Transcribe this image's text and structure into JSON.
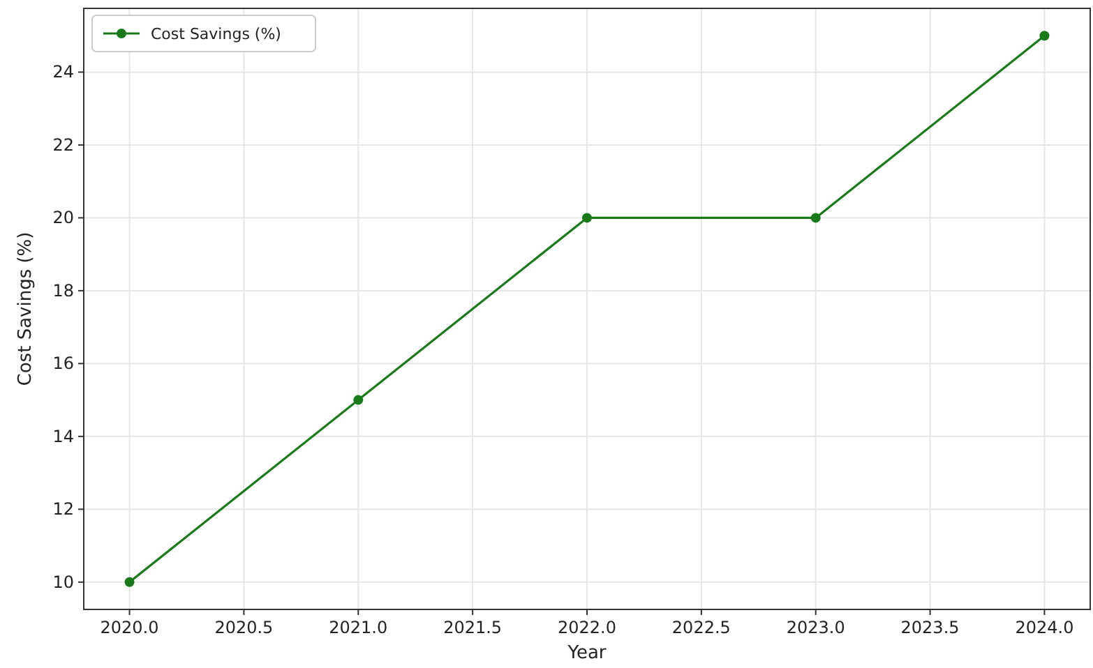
{
  "chart_data": {
    "type": "line",
    "xlabel": "Year",
    "ylabel": "Cost Savings (%)",
    "x": [
      2020,
      2021,
      2022,
      2023,
      2024
    ],
    "series": [
      {
        "name": "Cost Savings (%)",
        "color": "#1a7a1a",
        "values": [
          10,
          15,
          20,
          20,
          25
        ]
      }
    ],
    "xlim": [
      2019.8,
      2024.2
    ],
    "ylim": [
      9.25,
      25.75
    ],
    "xticks": [
      {
        "value": 2020,
        "label": "2020.0"
      },
      {
        "value": 2020.5,
        "label": "2020.5"
      },
      {
        "value": 2021,
        "label": "2021.0"
      },
      {
        "value": 2021.5,
        "label": "2021.5"
      },
      {
        "value": 2022,
        "label": "2022.0"
      },
      {
        "value": 2022.5,
        "label": "2022.5"
      },
      {
        "value": 2023,
        "label": "2023.0"
      },
      {
        "value": 2023.5,
        "label": "2023.5"
      },
      {
        "value": 2024,
        "label": "2024.0"
      }
    ],
    "yticks": [
      10,
      12,
      14,
      16,
      18,
      20,
      22,
      24
    ],
    "grid": true,
    "legend": "top left",
    "marker": "circle",
    "line_style": "solid"
  }
}
